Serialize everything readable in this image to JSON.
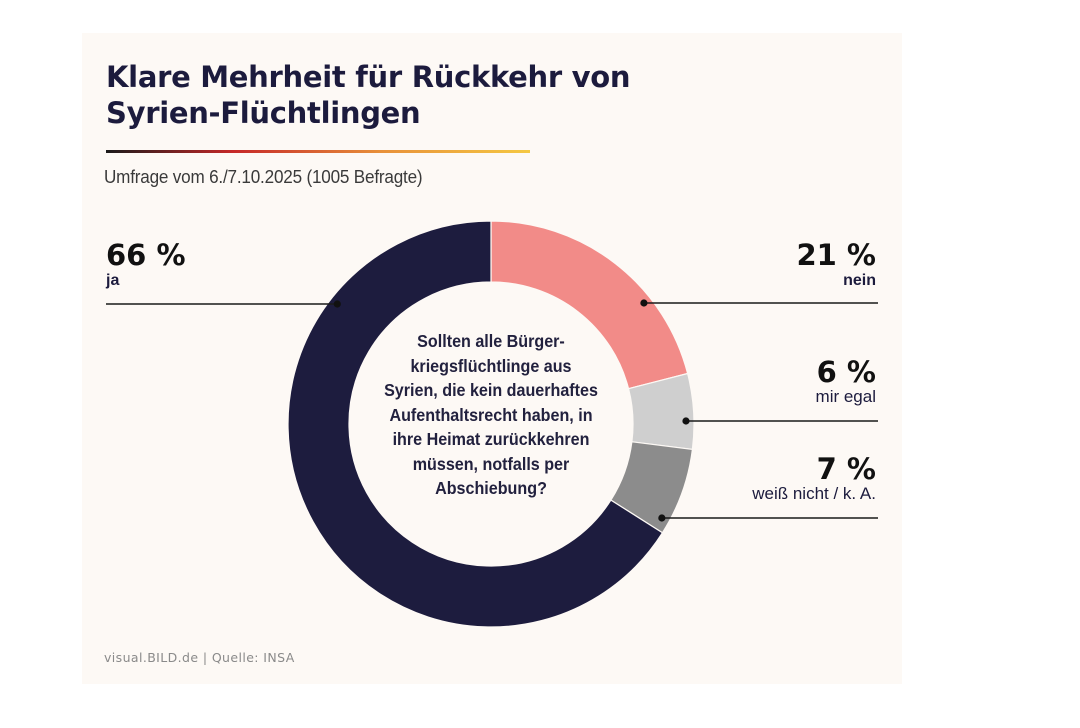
{
  "header": {
    "title_line1": "Klare Mehrheit für Rückkehr von",
    "title_line2": "Syrien-Flüchtlingen",
    "subtitle": "Umfrage vom 6./7.10.2025 (1005 Befragte)"
  },
  "footer": {
    "credit": "visual.BILD.de | Quelle: INSA"
  },
  "colors": {
    "ja": "#1d1c3e",
    "nein": "#f28b88",
    "mir_egal": "#cfcfcf",
    "weiss_nicht": "#8c8c8c",
    "background": "#fdf9f5"
  },
  "chart_data": {
    "type": "pie",
    "variant": "donut",
    "title": "Klare Mehrheit für Rückkehr von Syrien-Flüchtlingen",
    "subtitle": "Umfrage vom 6./7.10.2025 (1005 Befragte)",
    "question": "Sollten alle Bürgerkriegsflüchtlinge aus Syrien, die kein dauerhaftes Aufenthaltsrecht haben, in ihre Heimat zurückkehren müssen, notfalls per Abschiebung?",
    "question_lines": [
      "Sollten alle Bürger-",
      "kriegsflüchtlinge aus",
      "Syrien, die kein dauerhaftes",
      "Aufenthaltsrecht haben, in",
      "ihre Heimat zurückkehren",
      "müssen, notfalls per",
      "Abschiebung?"
    ],
    "start": "top",
    "direction": "clockwise",
    "unit": "%",
    "slices": [
      {
        "label": "nein",
        "value": 21,
        "display": "21 %",
        "color": "#f28b88",
        "label_side": "right"
      },
      {
        "label": "mir egal",
        "value": 6,
        "display": "6 %",
        "color": "#cfcfcf",
        "label_side": "right"
      },
      {
        "label": "weiß nicht / k. A.",
        "value": 7,
        "display": "7 %",
        "color": "#8c8c8c",
        "label_side": "right"
      },
      {
        "label": "ja",
        "value": 66,
        "display": "66 %",
        "color": "#1d1c3e",
        "label_side": "left"
      }
    ],
    "source": "visual.BILD.de | Quelle: INSA"
  }
}
